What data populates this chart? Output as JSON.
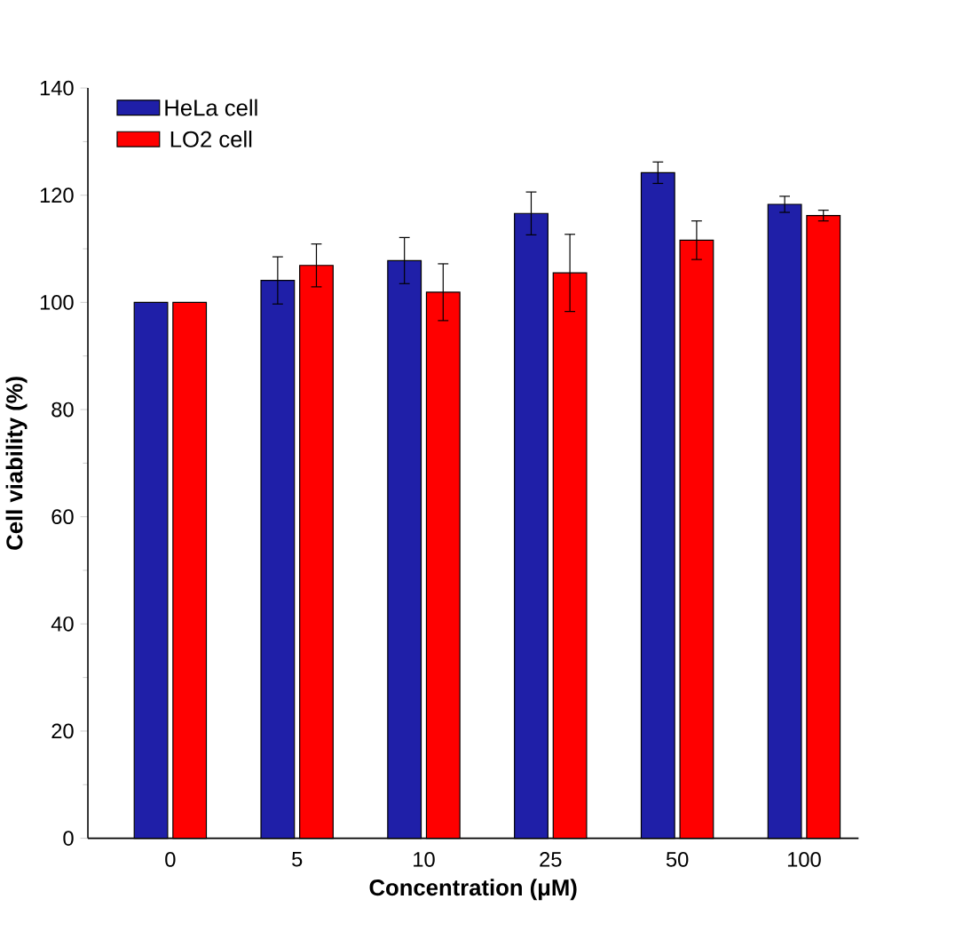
{
  "chart_data": {
    "type": "bar",
    "xlabel": "Concentration (μM)",
    "ylabel": "Cell viability (%)",
    "categories": [
      "0",
      "5",
      "10",
      "25",
      "50",
      "100"
    ],
    "series": [
      {
        "name": "HeLa cell",
        "color": "#1f1fa8",
        "values": [
          100,
          104.1,
          107.8,
          116.6,
          124.2,
          118.3
        ],
        "errors": [
          null,
          4.4,
          4.3,
          4,
          2,
          1.5
        ]
      },
      {
        "name": "LO2 cell",
        "color": "#ff0000",
        "values": [
          100,
          106.9,
          101.9,
          105.5,
          111.6,
          116.2
        ],
        "errors": [
          null,
          4,
          5.3,
          7.2,
          3.6,
          1
        ]
      }
    ],
    "ylim": [
      0,
      140
    ],
    "yticks": [
      0,
      20,
      40,
      60,
      80,
      100,
      120,
      140
    ],
    "legend": "top left"
  }
}
